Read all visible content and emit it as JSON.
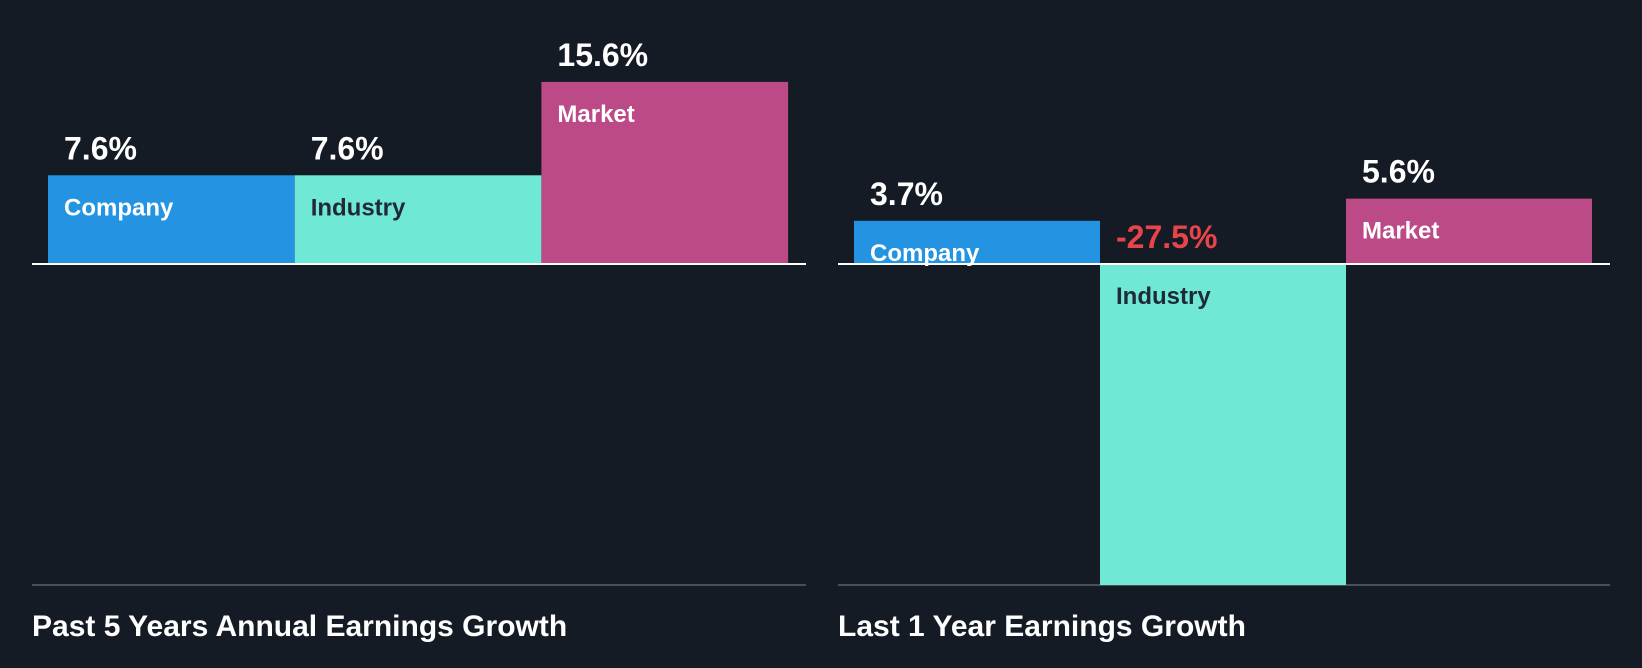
{
  "colors": {
    "background": "#151b24",
    "company": "#2494e2",
    "industry": "#70e8d6",
    "market": "#bb4a87",
    "label_light": "#ffffff",
    "label_dark": "#1f2a36",
    "negative": "#e8454b",
    "axis_line": "#ffffff",
    "baseline": "#4a4f57"
  },
  "chart_data": [
    {
      "type": "bar",
      "title": "Past 5 Years Annual Earnings Growth",
      "categories": [
        "Company",
        "Industry",
        "Market"
      ],
      "values": [
        7.6,
        7.6,
        15.6
      ],
      "value_labels": [
        "7.6%",
        "7.6%",
        "15.6%"
      ],
      "ylim": [
        -27.5,
        15.6
      ]
    },
    {
      "type": "bar",
      "title": "Last 1 Year Earnings Growth",
      "categories": [
        "Company",
        "Industry",
        "Market"
      ],
      "values": [
        3.7,
        -27.5,
        5.6
      ],
      "value_labels": [
        "3.7%",
        "-27.5%",
        "5.6%"
      ],
      "ylim": [
        -27.5,
        15.6
      ]
    }
  ]
}
